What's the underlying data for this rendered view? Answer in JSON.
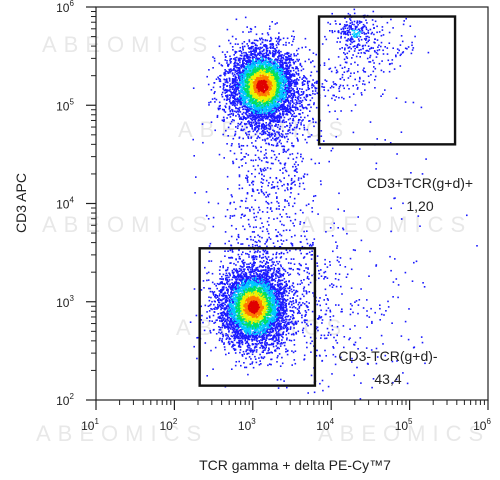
{
  "chart_data": {
    "type": "scatter",
    "title": "",
    "xlabel": "TCR gamma + delta  PE-Cy™7",
    "ylabel": "CD3 APC",
    "x_scale": "log",
    "y_scale": "log",
    "xlim": [
      10,
      1000000
    ],
    "ylim": [
      100,
      1000000
    ],
    "x_ticks": [
      {
        "base": "10",
        "exp": "1",
        "value": 10
      },
      {
        "base": "10",
        "exp": "2",
        "value": 100
      },
      {
        "base": "10",
        "exp": "3",
        "value": 1000
      },
      {
        "base": "10",
        "exp": "4",
        "value": 10000
      },
      {
        "base": "10",
        "exp": "5",
        "value": 100000
      },
      {
        "base": "10",
        "exp": "6",
        "value": 1000000
      }
    ],
    "y_ticks": [
      {
        "base": "10",
        "exp": "2",
        "value": 100
      },
      {
        "base": "10",
        "exp": "3",
        "value": 1000
      },
      {
        "base": "10",
        "exp": "4",
        "value": 10000
      },
      {
        "base": "10",
        "exp": "5",
        "value": 100000
      },
      {
        "base": "10",
        "exp": "6",
        "value": 1000000
      }
    ],
    "gates": [
      {
        "label": "CD3+TCR(g+d)+",
        "percent": "1,20",
        "x_range": [
          7000,
          380000
        ],
        "y_range": [
          40000,
          800000
        ]
      },
      {
        "label": "CD3-TCR(g+d)-",
        "percent": "43,4",
        "x_range": [
          210,
          6200
        ],
        "y_range": [
          140,
          3500
        ]
      }
    ],
    "populations": [
      {
        "center_x": 1300,
        "center_y": 160000,
        "n": 4200
      },
      {
        "center_x": 1000,
        "center_y": 900,
        "n": 4200
      },
      {
        "center_x": 20000,
        "center_y": 550000,
        "n": 220
      }
    ],
    "watermark": "ABEOMICS",
    "density_colors": [
      "#1a1aff",
      "#00c8ff",
      "#00e060",
      "#f0f000",
      "#ff7a00",
      "#e00000"
    ]
  }
}
